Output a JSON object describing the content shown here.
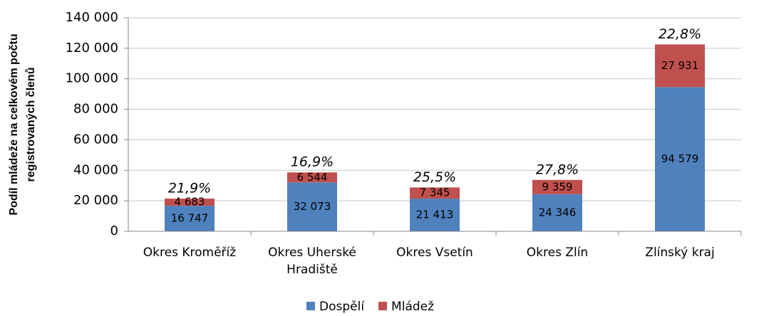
{
  "chart_data": {
    "type": "stacked_bar",
    "ylabel": [
      "Podíl mládeže na celkovém počtu",
      "registrovaných členů"
    ],
    "categories": [
      "Okres Kroměříž",
      "Okres Uherské Hradiště",
      "Okres Vsetín",
      "Okres Zlín",
      "Zlínský kraj"
    ],
    "series": [
      {
        "name": "Dospělí",
        "color": "#4f81bd",
        "values": [
          16747,
          32073,
          21413,
          24346,
          94579
        ],
        "value_labels": [
          "16 747",
          "32 073",
          "21 413",
          "24 346",
          "94 579"
        ]
      },
      {
        "name": "Mládež",
        "color": "#c0504d",
        "values": [
          4683,
          6544,
          7345,
          9359,
          27931
        ],
        "value_labels": [
          "4 683",
          "6 544",
          "7 345",
          "9 359",
          "27 931"
        ]
      }
    ],
    "annotations": [
      "21,9%",
      "16,9%",
      "25,5%",
      "27,8%",
      "22,8%"
    ],
    "ylim": [
      0,
      140000
    ],
    "yticks": [
      0,
      {
        "value": 20000,
        "label": "20 000"
      },
      {
        "value": 40000,
        "label": "40 000"
      },
      {
        "value": 60000,
        "label": "60 000"
      },
      {
        "value": 80000,
        "label": "80 000"
      },
      {
        "value": 100000,
        "label": "100 000"
      },
      {
        "value": 120000,
        "label": "120 000"
      },
      {
        "value": 140000,
        "label": "140 000"
      }
    ],
    "grid": true,
    "legend": "bottom"
  }
}
